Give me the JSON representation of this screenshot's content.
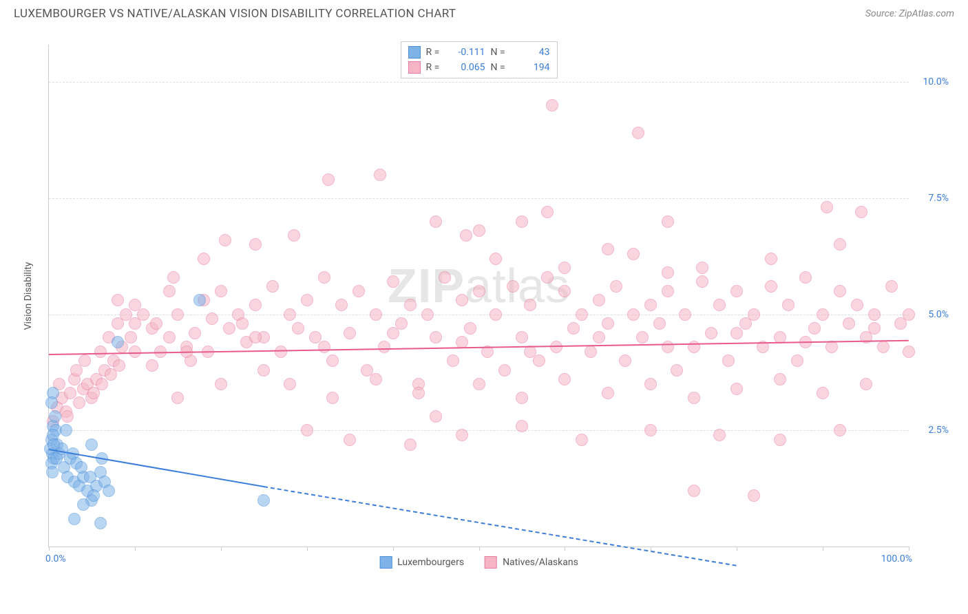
{
  "header": {
    "title": "LUXEMBOURGER VS NATIVE/ALASKAN VISION DISABILITY CORRELATION CHART",
    "source": "Source: ZipAtlas.com"
  },
  "watermark": {
    "bold": "ZIP",
    "light": "atlas"
  },
  "chart": {
    "type": "scatter",
    "background_color": "#ffffff",
    "grid_color": "#dddddd",
    "axis_color": "#cccccc",
    "ylabel": "Vision Disability",
    "ylabel_fontsize": 14,
    "ylabel_color": "#555555",
    "xlim": [
      0,
      100
    ],
    "ylim": [
      0,
      10.8
    ],
    "yticks": [
      2.5,
      5.0,
      7.5,
      10.0
    ],
    "ytick_labels": [
      "2.5%",
      "5.0%",
      "7.5%",
      "10.0%"
    ],
    "xtick_positions": [
      0,
      10,
      20,
      30,
      40,
      50,
      60,
      70,
      80,
      90,
      100
    ],
    "xaxis_label_left": "0.0%",
    "xaxis_label_right": "100.0%",
    "axis_label_color": "#3b7dd8",
    "axis_label_fontsize": 14,
    "marker_radius": 9,
    "marker_opacity": 0.55,
    "series": {
      "luxembourgers": {
        "label": "Luxembourgers",
        "fill_color": "#7fb3e8",
        "stroke_color": "#4a90d9",
        "r_value": "-0.111",
        "n_value": "43",
        "trend": {
          "x0": 0,
          "y0": 2.1,
          "x1": 25,
          "y1": 1.3,
          "solid_until_x": 25,
          "dash_to_x": 80,
          "dash_to_y": -0.4,
          "color": "#3b7dd8"
        },
        "points": [
          [
            0.3,
            2.3
          ],
          [
            0.5,
            2.6
          ],
          [
            0.4,
            2.0
          ],
          [
            0.8,
            2.5
          ],
          [
            0.5,
            3.3
          ],
          [
            0.2,
            2.1
          ],
          [
            0.6,
            1.9
          ],
          [
            1.0,
            2.2
          ],
          [
            0.3,
            1.8
          ],
          [
            0.5,
            2.4
          ],
          [
            1.2,
            2.0
          ],
          [
            0.7,
            2.8
          ],
          [
            0.4,
            1.6
          ],
          [
            0.9,
            1.9
          ],
          [
            1.5,
            2.1
          ],
          [
            0.3,
            3.1
          ],
          [
            0.6,
            2.2
          ],
          [
            1.8,
            1.7
          ],
          [
            2.2,
            1.5
          ],
          [
            2.5,
            1.9
          ],
          [
            3.0,
            1.4
          ],
          [
            2.8,
            2.0
          ],
          [
            3.5,
            1.3
          ],
          [
            3.2,
            1.8
          ],
          [
            4.0,
            1.5
          ],
          [
            4.5,
            1.2
          ],
          [
            3.8,
            1.7
          ],
          [
            5.0,
            1.0
          ],
          [
            4.8,
            1.5
          ],
          [
            5.5,
            1.3
          ],
          [
            6.0,
            1.6
          ],
          [
            5.2,
            1.1
          ],
          [
            6.5,
            1.4
          ],
          [
            6.2,
            1.9
          ],
          [
            7.0,
            1.2
          ],
          [
            3.0,
            0.6
          ],
          [
            4.0,
            0.9
          ],
          [
            5.0,
            2.2
          ],
          [
            6.0,
            0.5
          ],
          [
            8.0,
            4.4
          ],
          [
            17.5,
            5.3
          ],
          [
            25.0,
            1.0
          ],
          [
            2.0,
            2.5
          ]
        ]
      },
      "natives": {
        "label": "Natives/Alaskans",
        "fill_color": "#f5b5c5",
        "stroke_color": "#e87ca0",
        "r_value": "0.065",
        "n_value": "194",
        "trend": {
          "x0": 0,
          "y0": 4.15,
          "x1": 100,
          "y1": 4.45,
          "color": "#e85a8a"
        },
        "points": [
          [
            0.5,
            2.7
          ],
          [
            1.0,
            3.0
          ],
          [
            1.5,
            3.2
          ],
          [
            2.0,
            2.9
          ],
          [
            1.2,
            3.5
          ],
          [
            2.5,
            3.3
          ],
          [
            3.0,
            3.6
          ],
          [
            2.2,
            2.8
          ],
          [
            3.5,
            3.1
          ],
          [
            4.0,
            3.4
          ],
          [
            3.2,
            3.8
          ],
          [
            4.5,
            3.5
          ],
          [
            5.0,
            3.2
          ],
          [
            4.2,
            4.0
          ],
          [
            5.5,
            3.6
          ],
          [
            6.0,
            4.2
          ],
          [
            5.2,
            3.3
          ],
          [
            6.5,
            3.8
          ],
          [
            7.0,
            4.5
          ],
          [
            6.2,
            3.5
          ],
          [
            7.5,
            4.0
          ],
          [
            8.0,
            4.8
          ],
          [
            7.2,
            3.7
          ],
          [
            8.5,
            4.3
          ],
          [
            9.0,
            5.0
          ],
          [
            8.2,
            3.9
          ],
          [
            9.5,
            4.5
          ],
          [
            10.0,
            5.2
          ],
          [
            12.0,
            4.7
          ],
          [
            11.0,
            5.0
          ],
          [
            13.0,
            4.2
          ],
          [
            14.0,
            5.5
          ],
          [
            12.5,
            4.8
          ],
          [
            15.0,
            5.0
          ],
          [
            16.0,
            4.3
          ],
          [
            14.5,
            5.8
          ],
          [
            17.0,
            4.6
          ],
          [
            18.0,
            5.3
          ],
          [
            16.5,
            4.0
          ],
          [
            19.0,
            4.9
          ],
          [
            20.0,
            5.5
          ],
          [
            18.5,
            4.2
          ],
          [
            21.0,
            4.7
          ],
          [
            22.0,
            5.0
          ],
          [
            20.5,
            6.6
          ],
          [
            23.0,
            4.4
          ],
          [
            24.0,
            5.2
          ],
          [
            22.5,
            4.8
          ],
          [
            25.0,
            4.5
          ],
          [
            26.0,
            5.6
          ],
          [
            27.0,
            4.2
          ],
          [
            28.0,
            5.0
          ],
          [
            29.0,
            4.7
          ],
          [
            30.0,
            5.3
          ],
          [
            28.5,
            6.7
          ],
          [
            31.0,
            4.5
          ],
          [
            32.0,
            5.8
          ],
          [
            33.0,
            4.0
          ],
          [
            34.0,
            5.2
          ],
          [
            32.5,
            7.9
          ],
          [
            35.0,
            4.6
          ],
          [
            36.0,
            5.5
          ],
          [
            37.0,
            3.8
          ],
          [
            38.0,
            5.0
          ],
          [
            39.0,
            4.3
          ],
          [
            40.0,
            5.7
          ],
          [
            38.5,
            8.0
          ],
          [
            41.0,
            4.8
          ],
          [
            42.0,
            5.2
          ],
          [
            43.0,
            3.5
          ],
          [
            44.0,
            5.0
          ],
          [
            45.0,
            4.5
          ],
          [
            46.0,
            5.8
          ],
          [
            47.0,
            4.0
          ],
          [
            48.0,
            5.3
          ],
          [
            49.0,
            4.7
          ],
          [
            50.0,
            5.5
          ],
          [
            48.5,
            6.7
          ],
          [
            51.0,
            4.2
          ],
          [
            52.0,
            5.0
          ],
          [
            53.0,
            3.8
          ],
          [
            54.0,
            5.6
          ],
          [
            55.0,
            4.5
          ],
          [
            56.0,
            5.2
          ],
          [
            55.0,
            7.0
          ],
          [
            57.0,
            4.0
          ],
          [
            58.0,
            5.8
          ],
          [
            59.0,
            4.3
          ],
          [
            60.0,
            5.5
          ],
          [
            58.5,
            9.5
          ],
          [
            61.0,
            4.7
          ],
          [
            62.0,
            5.0
          ],
          [
            63.0,
            4.2
          ],
          [
            64.0,
            5.3
          ],
          [
            65.0,
            4.8
          ],
          [
            66.0,
            5.6
          ],
          [
            67.0,
            4.0
          ],
          [
            68.0,
            5.0
          ],
          [
            69.0,
            4.5
          ],
          [
            70.0,
            5.2
          ],
          [
            68.5,
            8.9
          ],
          [
            71.0,
            4.8
          ],
          [
            72.0,
            5.5
          ],
          [
            73.0,
            3.8
          ],
          [
            74.0,
            5.0
          ],
          [
            75.0,
            4.3
          ],
          [
            76.0,
            5.7
          ],
          [
            77.0,
            4.6
          ],
          [
            78.0,
            5.2
          ],
          [
            79.0,
            4.0
          ],
          [
            80.0,
            5.5
          ],
          [
            81.0,
            4.8
          ],
          [
            82.0,
            5.0
          ],
          [
            83.0,
            4.3
          ],
          [
            84.0,
            5.6
          ],
          [
            85.0,
            4.5
          ],
          [
            86.0,
            5.2
          ],
          [
            87.0,
            4.0
          ],
          [
            88.0,
            5.8
          ],
          [
            89.0,
            4.7
          ],
          [
            90.0,
            5.0
          ],
          [
            91.0,
            4.3
          ],
          [
            92.0,
            5.5
          ],
          [
            90.5,
            7.3
          ],
          [
            93.0,
            4.8
          ],
          [
            94.0,
            5.2
          ],
          [
            95.0,
            4.5
          ],
          [
            96.0,
            5.0
          ],
          [
            94.5,
            7.2
          ],
          [
            97.0,
            4.3
          ],
          [
            98.0,
            5.6
          ],
          [
            99.0,
            4.8
          ],
          [
            100.0,
            5.0
          ],
          [
            100.0,
            4.2
          ],
          [
            30.0,
            2.5
          ],
          [
            35.0,
            2.3
          ],
          [
            42.0,
            2.2
          ],
          [
            48.0,
            2.4
          ],
          [
            55.0,
            2.6
          ],
          [
            62.0,
            2.3
          ],
          [
            70.0,
            2.5
          ],
          [
            78.0,
            2.4
          ],
          [
            85.0,
            2.3
          ],
          [
            92.0,
            2.5
          ],
          [
            75.0,
            1.2
          ],
          [
            82.0,
            1.1
          ],
          [
            45.0,
            2.8
          ],
          [
            50.0,
            6.8
          ],
          [
            65.0,
            6.4
          ],
          [
            72.0,
            5.9
          ],
          [
            15.0,
            3.2
          ],
          [
            20.0,
            3.5
          ],
          [
            25.0,
            3.8
          ],
          [
            8.0,
            5.3
          ],
          [
            10.0,
            4.2
          ],
          [
            12.0,
            3.9
          ],
          [
            28.0,
            3.5
          ],
          [
            33.0,
            3.2
          ],
          [
            38.0,
            3.6
          ],
          [
            43.0,
            3.3
          ],
          [
            50.0,
            3.5
          ],
          [
            55.0,
            3.2
          ],
          [
            60.0,
            3.6
          ],
          [
            65.0,
            3.3
          ],
          [
            70.0,
            3.5
          ],
          [
            75.0,
            3.2
          ],
          [
            80.0,
            3.4
          ],
          [
            85.0,
            3.6
          ],
          [
            90.0,
            3.3
          ],
          [
            95.0,
            3.5
          ],
          [
            18.0,
            6.2
          ],
          [
            24.0,
            6.5
          ],
          [
            52.0,
            6.2
          ],
          [
            60.0,
            6.0
          ],
          [
            68.0,
            6.3
          ],
          [
            76.0,
            6.0
          ],
          [
            84.0,
            6.2
          ],
          [
            92.0,
            6.5
          ],
          [
            45.0,
            7.0
          ],
          [
            58.0,
            7.2
          ],
          [
            72.0,
            7.0
          ],
          [
            10.0,
            4.8
          ],
          [
            14.0,
            4.5
          ],
          [
            96.0,
            4.7
          ],
          [
            88.0,
            4.4
          ],
          [
            80.0,
            4.6
          ],
          [
            72.0,
            4.3
          ],
          [
            64.0,
            4.5
          ],
          [
            56.0,
            4.2
          ],
          [
            48.0,
            4.4
          ],
          [
            40.0,
            4.6
          ],
          [
            32.0,
            4.3
          ],
          [
            24.0,
            4.5
          ],
          [
            16.0,
            4.2
          ]
        ]
      }
    },
    "legend_top": {
      "r_label": "R =",
      "n_label": "N ="
    }
  }
}
